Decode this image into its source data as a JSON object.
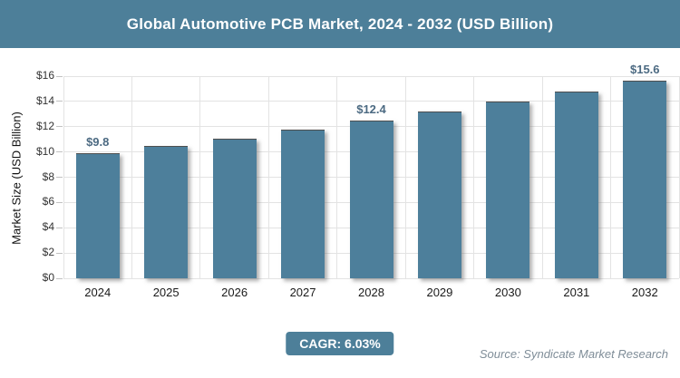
{
  "header": {
    "title": "Global Automotive PCB Market, 2024 - 2032 (USD Billion)"
  },
  "chart_data": {
    "type": "bar",
    "title": "Global Automotive PCB Market, 2024 - 2032 (USD Billion)",
    "categories": [
      "2024",
      "2025",
      "2026",
      "2027",
      "2028",
      "2029",
      "2030",
      "2031",
      "2032"
    ],
    "values": [
      9.8,
      10.4,
      11.0,
      11.7,
      12.4,
      13.1,
      13.9,
      14.7,
      15.6
    ],
    "data_labels": [
      {
        "index": 0,
        "text": "$9.8"
      },
      {
        "index": 4,
        "text": "$12.4"
      },
      {
        "index": 8,
        "text": "$15.6"
      }
    ],
    "xlabel": "",
    "ylabel": "Market Size (USD Billion)",
    "ylim": [
      0,
      16
    ],
    "ytick_step": 2,
    "ytick_labels": [
      "$0",
      "$2",
      "$4",
      "$6",
      "$8",
      "$10",
      "$12",
      "$14",
      "$16"
    ],
    "grid": true,
    "legend": false
  },
  "footer": {
    "cagr_label": "CAGR: 6.03%",
    "source": "Source: Syndicate Market Research"
  },
  "colors": {
    "accent": "#4d7f99",
    "bar": "#4d7f9b",
    "grid": "#e3e3e3",
    "axis_text": "#333333",
    "data_label": "#4c6a82",
    "source_text": "#7f8d98",
    "title_text": "#ffffff"
  }
}
